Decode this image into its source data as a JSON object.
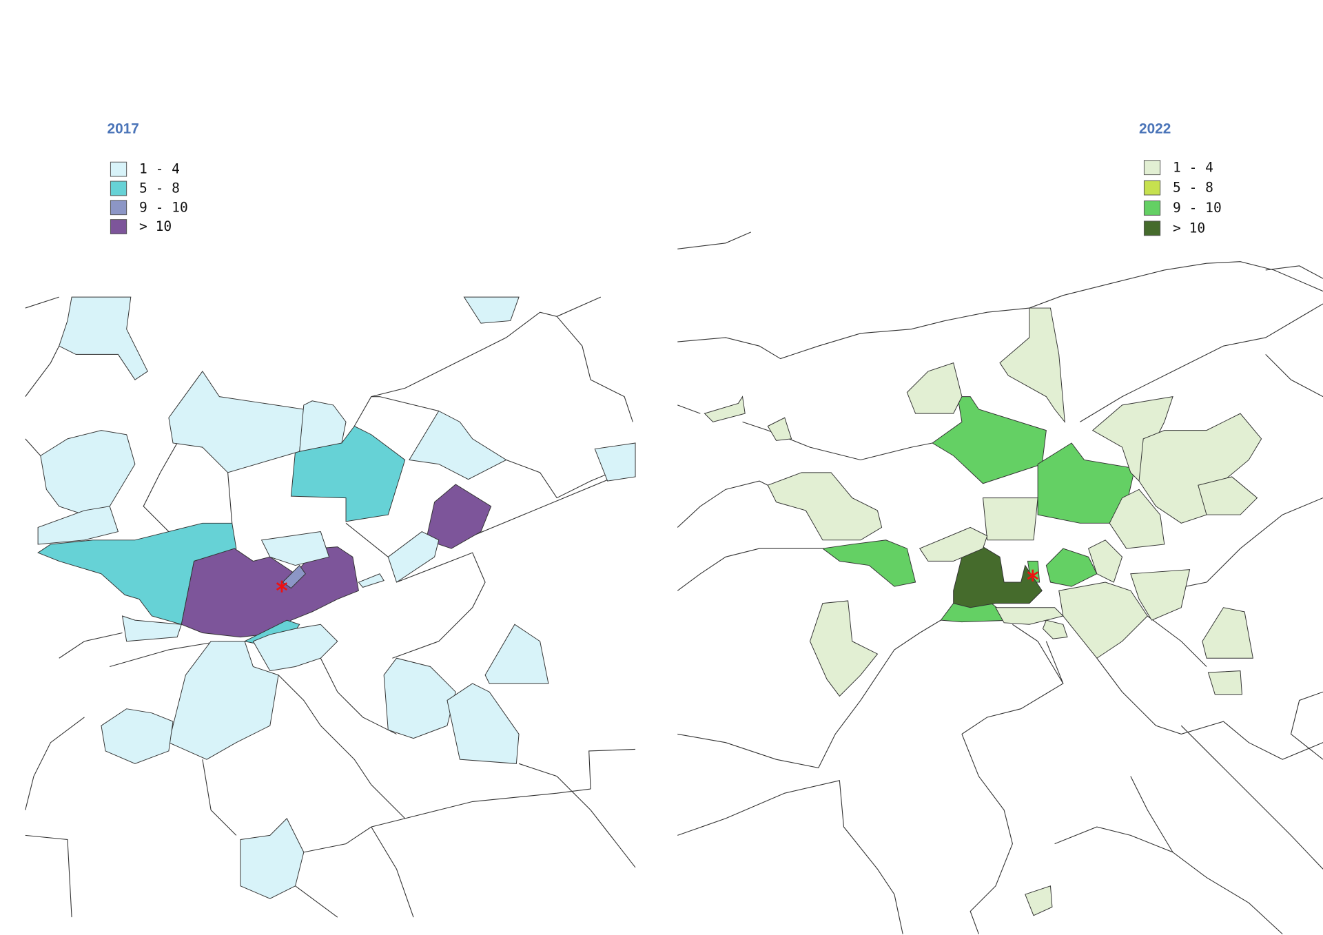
{
  "maps": [
    {
      "title": "2017",
      "legend": [
        {
          "label": "1 - 4",
          "color": "#d8f3f9"
        },
        {
          "label": "5 - 8",
          "color": "#66d2d6"
        },
        {
          "label": "9 - 10",
          "color": "#8c96c6"
        },
        {
          "label": "> 10",
          "color": "#7d559a"
        }
      ]
    },
    {
      "title": "2022",
      "legend": [
        {
          "label": "1 - 4",
          "color": "#e2efd3"
        },
        {
          "label": "5 - 8",
          "color": "#c6e14f"
        },
        {
          "label": "9 - 10",
          "color": "#64d064"
        },
        {
          "label": "> 10",
          "color": "#456b2c"
        }
      ]
    }
  ]
}
